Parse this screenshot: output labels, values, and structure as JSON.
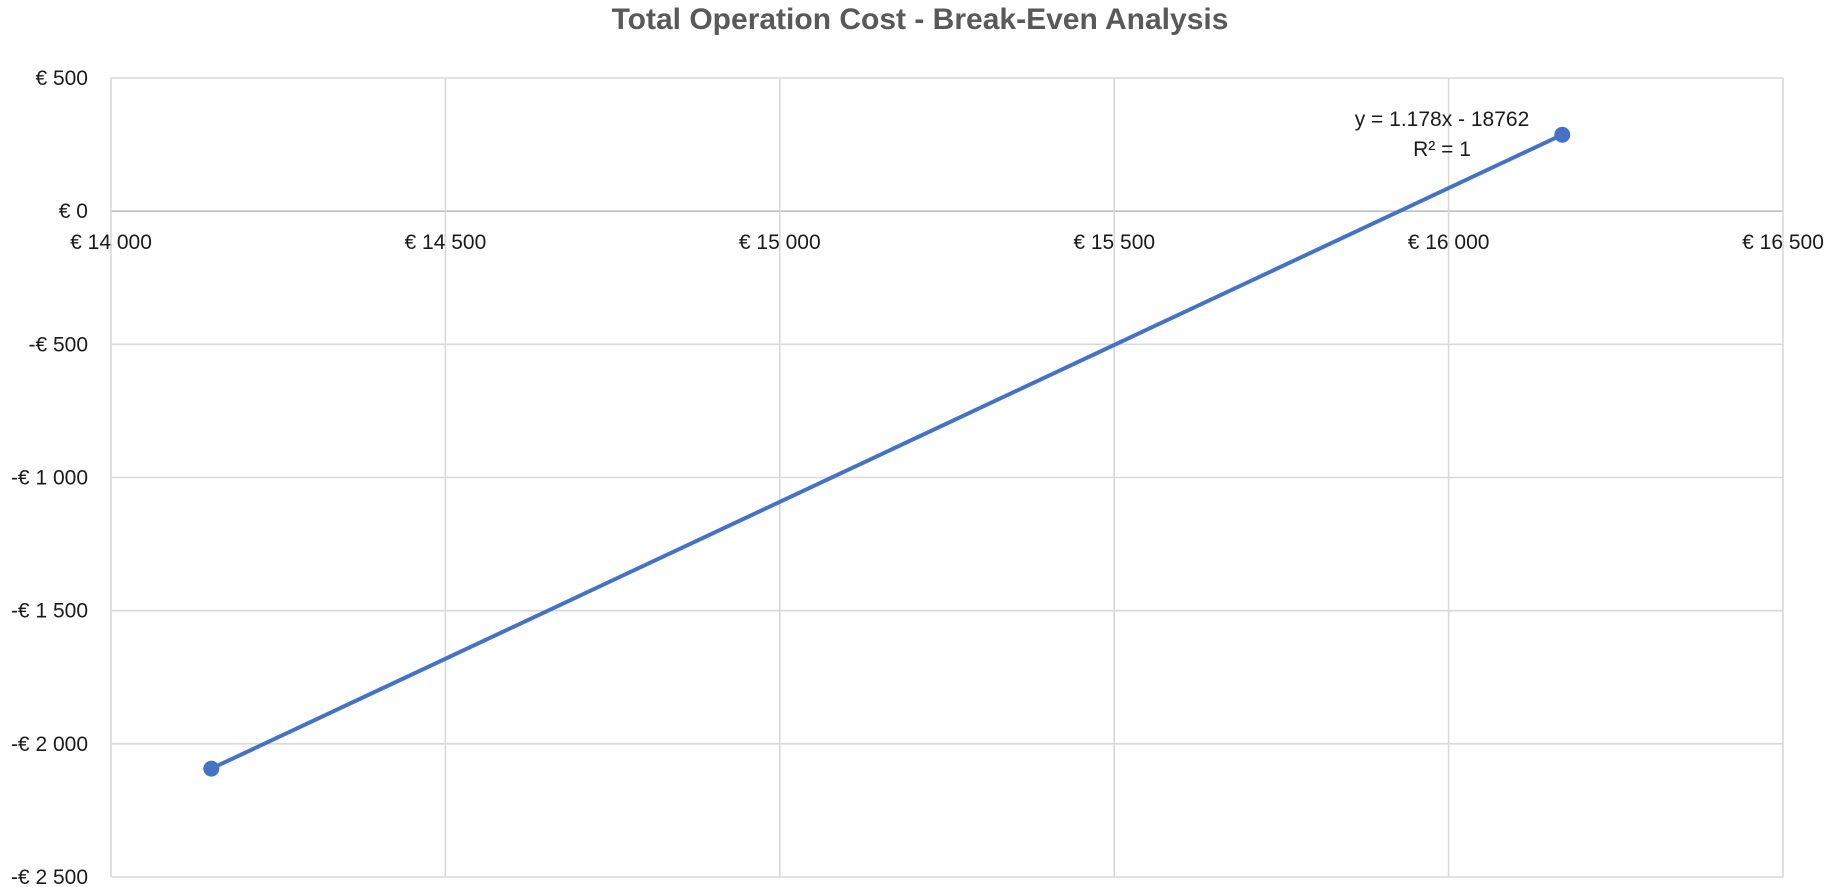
{
  "chart_data": {
    "type": "line",
    "title": "Total Operation Cost - Break-Even Analysis",
    "xlabel": "",
    "ylabel": "",
    "xlim": [
      14000,
      16500
    ],
    "ylim": [
      -2500,
      500
    ],
    "x_ticks": [
      {
        "value": 14000,
        "label": "€ 14 000"
      },
      {
        "value": 14500,
        "label": "€ 14 500"
      },
      {
        "value": 15000,
        "label": "€ 15 000"
      },
      {
        "value": 15500,
        "label": "€ 15 500"
      },
      {
        "value": 16000,
        "label": "€ 16 000"
      },
      {
        "value": 16500,
        "label": "€ 16 500"
      }
    ],
    "y_ticks": [
      {
        "value": 500,
        "label": "€ 500"
      },
      {
        "value": 0,
        "label": "€ 0"
      },
      {
        "value": -500,
        "label": "-€ 500"
      },
      {
        "value": -1000,
        "label": "-€ 1 000"
      },
      {
        "value": -1500,
        "label": "-€ 1 500"
      },
      {
        "value": -2000,
        "label": "-€ 2 000"
      },
      {
        "value": -2500,
        "label": "-€ 2 500"
      }
    ],
    "grid": true,
    "x_tick_position": "along zero line",
    "series": [
      {
        "color": "#4472C4",
        "marker": "circle",
        "points": [
          {
            "x": 14150,
            "y": -2093
          },
          {
            "x": 16170,
            "y": 287
          }
        ]
      }
    ],
    "trendline": {
      "equation": "y = 1.178x - 18762",
      "r_squared": "R² = 1"
    }
  }
}
